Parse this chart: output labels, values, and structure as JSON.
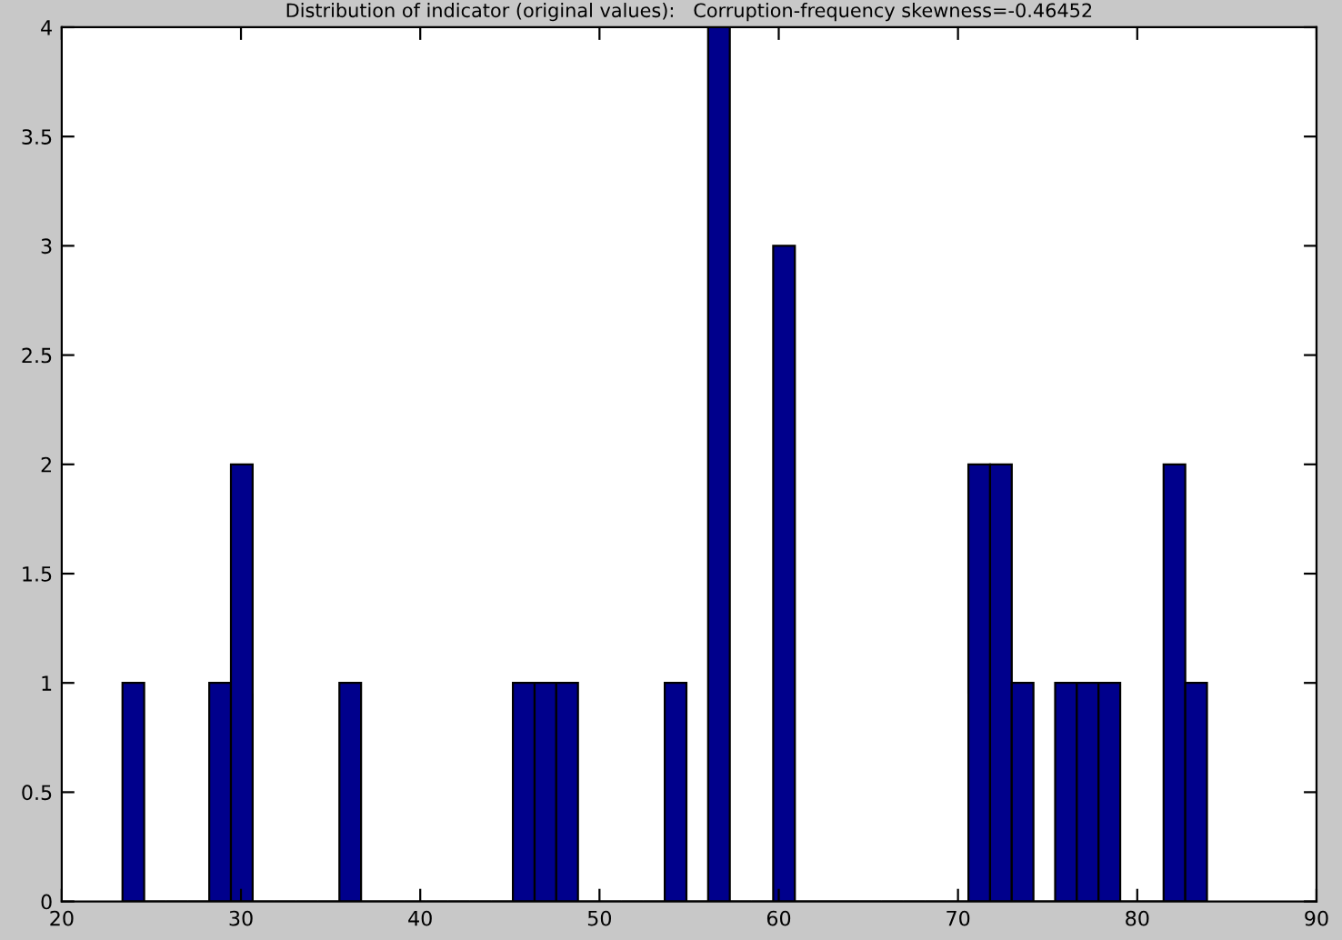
{
  "chart_data": {
    "type": "histogram",
    "title": "Distribution of indicator (original values):   Corruption-frequency skewness=-0.46452",
    "bins": [
      23.39,
      24.6,
      25.81,
      27.02,
      28.23,
      29.44,
      30.65,
      31.86,
      33.07,
      34.28,
      35.49,
      36.7,
      37.91,
      39.12,
      40.33,
      41.54,
      42.75,
      43.96,
      45.17,
      46.38,
      47.59,
      48.8,
      50.01,
      51.22,
      52.43,
      53.64,
      54.85,
      56.06,
      57.27,
      58.48,
      59.69,
      60.9,
      62.11,
      63.32,
      64.53,
      65.74,
      66.95,
      68.16,
      69.37,
      70.58,
      71.79,
      73.0,
      74.21,
      75.42,
      76.63,
      77.84,
      79.05,
      80.26,
      81.47,
      82.68,
      83.89
    ],
    "values": [
      1,
      0,
      0,
      0,
      1,
      2,
      0,
      0,
      0,
      0,
      1,
      0,
      0,
      0,
      0,
      0,
      0,
      0,
      1,
      1,
      1,
      0,
      0,
      0,
      0,
      1,
      0,
      4,
      0,
      0,
      3,
      0,
      0,
      0,
      0,
      0,
      0,
      0,
      0,
      2,
      2,
      1,
      0,
      1,
      1,
      1,
      0,
      0,
      2,
      1
    ],
    "color": "#00008c",
    "xlim": [
      20,
      90
    ],
    "xticks": [
      20,
      30,
      40,
      50,
      60,
      70,
      80,
      90
    ],
    "ylim": [
      0,
      4
    ],
    "yticks": [
      0,
      0.5,
      1,
      1.5,
      2,
      2.5,
      3,
      3.5,
      4
    ],
    "grid": false,
    "legend": false
  }
}
